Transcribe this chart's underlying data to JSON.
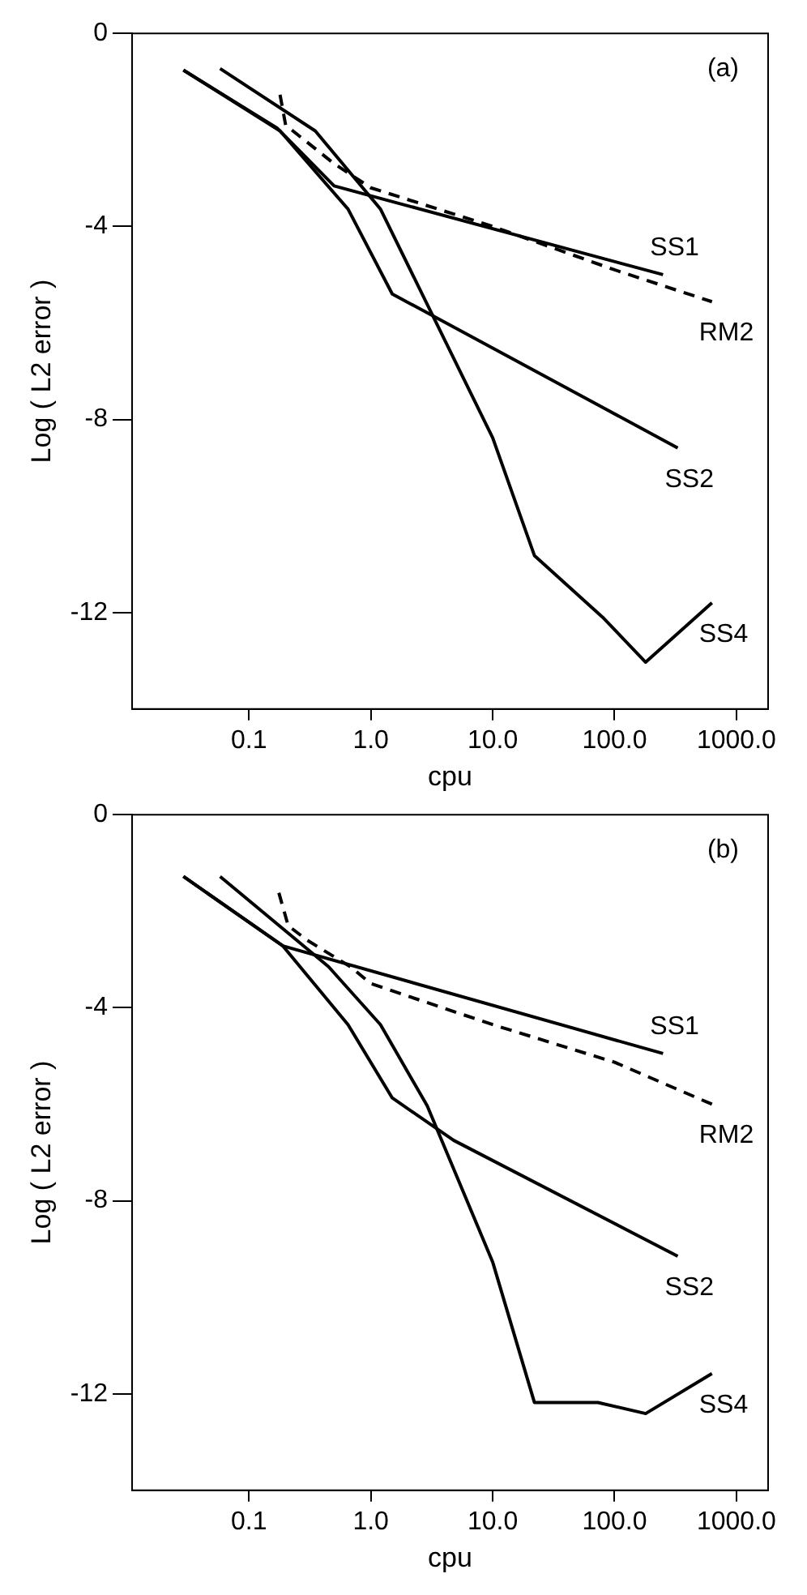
{
  "chart_data": [
    {
      "type": "line",
      "xlabel": "cpu",
      "ylabel": "Log ( L2 error )",
      "annotations": [
        "(a)"
      ],
      "log": "x",
      "grid": false,
      "legend": false,
      "xlim": [
        0.011,
        1820
      ],
      "ylim": [
        -14,
        0
      ],
      "xticks": [
        0.1,
        {
          "value": 1,
          "label": "1.0"
        },
        {
          "value": 10,
          "label": "10.0"
        },
        {
          "value": 100,
          "label": "100.0"
        },
        {
          "value": 1000,
          "label": "1000.0"
        }
      ],
      "yticks": [
        0,
        -4,
        -8,
        -12
      ],
      "series": [
        {
          "name": "SS1",
          "color": "#000000",
          "line_style": "solid",
          "x": [
            0.029,
            0.17,
            0.5,
            250
          ],
          "values": [
            -0.76,
            -1.96,
            -3.16,
            -5.0
          ]
        },
        {
          "name": "RM2",
          "color": "#000000",
          "line_style": "dashed",
          "x": [
            0.18,
            0.2,
            0.5,
            1.0,
            10,
            100,
            630
          ],
          "values": [
            -1.27,
            -1.9,
            -2.7,
            -3.2,
            -4.0,
            -4.9,
            -5.56
          ]
        },
        {
          "name": "SS2",
          "color": "#000000",
          "line_style": "solid",
          "x": [
            0.029,
            0.18,
            0.65,
            1.5,
            330
          ],
          "values": [
            -0.76,
            -2.02,
            -3.64,
            -5.4,
            -8.59
          ]
        },
        {
          "name": "SS4",
          "color": "#000000",
          "line_style": "solid",
          "x": [
            0.058,
            0.35,
            1.2,
            10,
            22,
            80,
            180,
            630
          ],
          "values": [
            -0.73,
            -2.02,
            -3.64,
            -8.38,
            -10.82,
            -12.1,
            -13.03,
            -11.8
          ]
        }
      ]
    },
    {
      "type": "line",
      "xlabel": "cpu",
      "ylabel": "Log ( L2 error )",
      "annotations": [
        "(b)"
      ],
      "log": "x",
      "grid": false,
      "legend": false,
      "xlim": [
        0.011,
        1820
      ],
      "ylim": [
        -14,
        0
      ],
      "xticks": [
        0.1,
        {
          "value": 1,
          "label": "1.0"
        },
        {
          "value": 10,
          "label": "10.0"
        },
        {
          "value": 100,
          "label": "100.0"
        },
        {
          "value": 1000,
          "label": "1000.0"
        }
      ],
      "yticks": [
        0,
        -4,
        -8,
        -12
      ],
      "series": [
        {
          "name": "SS1",
          "color": "#000000",
          "line_style": "solid",
          "x": [
            0.029,
            0.19,
            250
          ],
          "values": [
            -1.28,
            -2.72,
            -4.95
          ]
        },
        {
          "name": "RM2",
          "color": "#000000",
          "line_style": "dashed",
          "x": [
            0.176,
            0.21,
            0.3,
            0.68,
            1.0,
            10,
            100,
            630
          ],
          "values": [
            -1.62,
            -2.3,
            -2.6,
            -3.15,
            -3.5,
            -4.35,
            -5.13,
            -6.0
          ]
        },
        {
          "name": "SS2",
          "color": "#000000",
          "line_style": "solid",
          "x": [
            0.029,
            0.19,
            0.65,
            1.5,
            4.8,
            330
          ],
          "values": [
            -1.28,
            -2.72,
            -4.35,
            -5.87,
            -6.75,
            -9.15
          ]
        },
        {
          "name": "SS4",
          "color": "#000000",
          "line_style": "solid",
          "x": [
            0.058,
            0.45,
            1.2,
            2.9,
            10,
            22,
            73,
            180,
            630
          ],
          "values": [
            -1.28,
            -3.15,
            -4.35,
            -6.03,
            -9.27,
            -12.18,
            -12.18,
            -12.41,
            -11.58
          ]
        }
      ]
    }
  ]
}
